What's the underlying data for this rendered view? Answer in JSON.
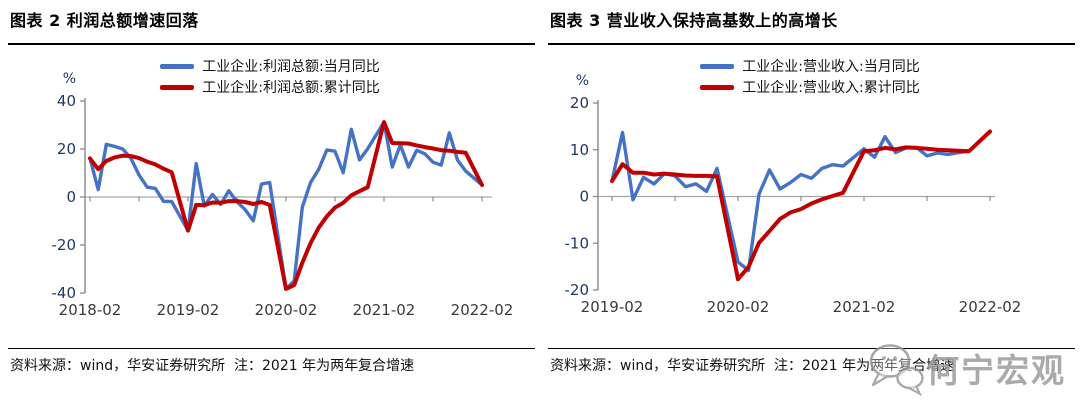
{
  "page": {
    "background": "#ffffff"
  },
  "colors": {
    "series_blue": "#4472C4",
    "series_red": "#C00000",
    "axis_gray": "#808080",
    "zero_line_gray": "#A6A6A6",
    "y_tick_label_navy": "#1F3864",
    "x_tick_label_gray": "#3A3A3A",
    "title_black": "#000000",
    "watermark_gray": "#9C9C9C"
  },
  "panels": [
    {
      "source_note": "资料来源：wind，华安证券研究所  注：2021 年为两年复合增速"
    },
    {
      "source_note": "资料来源：wind，华安证券研究所  注：2021 年为两年复合增速"
    }
  ],
  "watermark": {
    "icon": "wechat-icon",
    "text": "何宁宏观"
  },
  "chart_data": [
    {
      "type": "line",
      "title": "图表 2 利润总额增速回落",
      "ylabel": "%",
      "ylim": [
        -40,
        40
      ],
      "yticks": [
        40,
        20,
        0,
        -20,
        -40
      ],
      "xticks": [
        "2018-02",
        "2019-02",
        "2020-02",
        "2021-02",
        "2022-02"
      ],
      "grid": false,
      "legend_position": "top-center",
      "months": [
        "2018-02",
        "2018-03",
        "2018-04",
        "2018-05",
        "2018-06",
        "2018-07",
        "2018-08",
        "2018-09",
        "2018-10",
        "2018-11",
        "2018-12",
        "2019-02",
        "2019-03",
        "2019-04",
        "2019-05",
        "2019-06",
        "2019-07",
        "2019-08",
        "2019-09",
        "2019-10",
        "2019-11",
        "2019-12",
        "2020-02",
        "2020-03",
        "2020-04",
        "2020-05",
        "2020-06",
        "2020-07",
        "2020-08",
        "2020-09",
        "2020-10",
        "2020-11",
        "2020-12",
        "2021-02",
        "2021-03",
        "2021-04",
        "2021-05",
        "2021-06",
        "2021-07",
        "2021-08",
        "2021-09",
        "2021-10",
        "2021-11",
        "2021-12",
        "2022-02"
      ],
      "series": [
        {
          "name": "工业企业:利润总额:当月同比",
          "color": "#4472C4",
          "values": [
            16.1,
            3.1,
            21.9,
            21.1,
            20.0,
            16.2,
            9.2,
            4.1,
            3.6,
            -1.8,
            -1.9,
            -14.0,
            13.9,
            -3.7,
            1.1,
            -3.1,
            2.6,
            -2.0,
            -5.3,
            -9.9,
            5.4,
            6.0,
            -38.3,
            -34.9,
            -4.3,
            6.0,
            11.5,
            19.6,
            19.1,
            10.1,
            28.2,
            15.5,
            20.1,
            31.2,
            12.5,
            21.7,
            12.5,
            19.5,
            18.0,
            14.5,
            13.3,
            26.7,
            15.4,
            10.8,
            5.0
          ]
        },
        {
          "name": "工业企业:利润总额:累计同比",
          "color": "#C00000",
          "values": [
            16.1,
            11.6,
            15.0,
            16.5,
            17.2,
            17.1,
            16.2,
            14.7,
            13.6,
            11.8,
            10.3,
            -14.0,
            -3.3,
            -3.4,
            -2.3,
            -2.4,
            -1.7,
            -1.7,
            -2.1,
            -2.9,
            -2.1,
            -3.3,
            -38.3,
            -36.7,
            -27.4,
            -19.3,
            -12.8,
            -8.1,
            -4.4,
            -2.4,
            0.7,
            2.4,
            4.1,
            31.2,
            22.5,
            22.4,
            22.3,
            21.5,
            20.8,
            20.2,
            19.5,
            19.3,
            18.8,
            18.4,
            5.0
          ]
        }
      ]
    },
    {
      "type": "line",
      "title": "图表 3 营业收入保持高基数上的高增长",
      "ylabel": "%",
      "ylim": [
        -20,
        20
      ],
      "yticks": [
        20,
        10,
        0,
        -10,
        -20
      ],
      "xticks": [
        "2019-02",
        "2020-02",
        "2021-02",
        "2022-02"
      ],
      "grid": false,
      "legend_position": "top-center",
      "months": [
        "2019-02",
        "2019-03",
        "2019-04",
        "2019-05",
        "2019-06",
        "2019-07",
        "2019-08",
        "2019-09",
        "2019-10",
        "2019-11",
        "2019-12",
        "2020-02",
        "2020-03",
        "2020-04",
        "2020-05",
        "2020-06",
        "2020-07",
        "2020-08",
        "2020-09",
        "2020-10",
        "2020-11",
        "2020-12",
        "2021-02",
        "2021-03",
        "2021-04",
        "2021-05",
        "2021-06",
        "2021-07",
        "2021-08",
        "2021-09",
        "2021-10",
        "2021-11",
        "2021-12",
        "2022-02"
      ],
      "series": [
        {
          "name": "工业企业:营业收入:当月同比",
          "color": "#4472C4",
          "values": [
            3.3,
            13.7,
            -0.7,
            4.1,
            2.7,
            4.9,
            4.4,
            2.1,
            2.7,
            1.1,
            6.0,
            -14.0,
            -15.8,
            0.5,
            5.7,
            1.6,
            3.0,
            4.7,
            3.9,
            6.0,
            6.8,
            6.5,
            10.2,
            8.4,
            12.8,
            9.4,
            10.4,
            10.5,
            8.7,
            9.3,
            9.0,
            9.4,
            9.7,
            13.9
          ]
        },
        {
          "name": "工业企业:营业收入:累计同比",
          "color": "#C00000",
          "values": [
            3.3,
            6.9,
            5.1,
            5.1,
            4.7,
            4.9,
            4.7,
            4.5,
            4.4,
            4.4,
            4.3,
            -17.7,
            -15.1,
            -9.9,
            -7.4,
            -4.8,
            -3.4,
            -2.7,
            -1.5,
            -0.6,
            0.1,
            0.8,
            9.7,
            9.9,
            10.4,
            10.1,
            10.5,
            10.4,
            10.2,
            10.0,
            9.9,
            9.8,
            9.7,
            13.9
          ]
        }
      ]
    }
  ]
}
